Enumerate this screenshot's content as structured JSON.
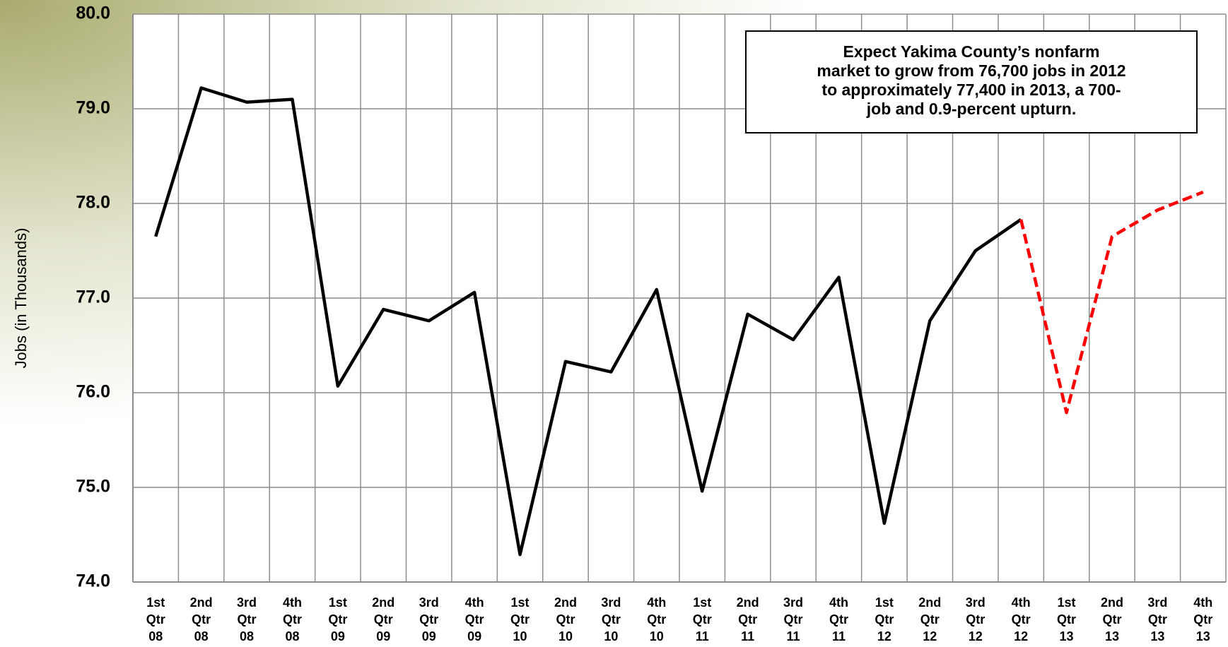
{
  "chart_data": {
    "type": "line",
    "y_label": "Jobs (in Thousands)",
    "annotation": [
      "Expect Yakima County’s nonfarm",
      "market to  grow from 76,700 jobs in 2012",
      "to approximately 77,400 in 2013, a 700-",
      "job  and 0.9-percent upturn."
    ],
    "categories": [
      [
        "1st",
        "Qtr",
        "08"
      ],
      [
        "2nd",
        "Qtr",
        "08"
      ],
      [
        "3rd",
        "Qtr",
        "08"
      ],
      [
        "4th",
        "Qtr",
        "08"
      ],
      [
        "1st",
        "Qtr",
        "09"
      ],
      [
        "2nd",
        "Qtr",
        "09"
      ],
      [
        "3rd",
        "Qtr",
        "09"
      ],
      [
        "4th",
        "Qtr",
        "09"
      ],
      [
        "1st",
        "Qtr",
        "10"
      ],
      [
        "2nd",
        "Qtr",
        "10"
      ],
      [
        "3rd",
        "Qtr",
        "10"
      ],
      [
        "4th",
        "Qtr",
        "10"
      ],
      [
        "1st",
        "Qtr",
        "11"
      ],
      [
        "2nd",
        "Qtr",
        "11"
      ],
      [
        "3rd",
        "Qtr",
        "11"
      ],
      [
        "4th",
        "Qtr",
        "11"
      ],
      [
        "1st",
        "Qtr",
        "12"
      ],
      [
        "2nd",
        "Qtr",
        "12"
      ],
      [
        "3rd",
        "Qtr",
        "12"
      ],
      [
        "4th",
        "Qtr",
        "12"
      ],
      [
        "1st",
        "Qtr",
        "13"
      ],
      [
        "2nd",
        "Qtr",
        "13"
      ],
      [
        "3rd",
        "Qtr",
        "13"
      ],
      [
        "4th",
        "Qtr",
        "13"
      ]
    ],
    "series": [
      {
        "color": "#000000",
        "dash": false,
        "values": [
          77.65,
          79.22,
          79.07,
          79.1,
          76.07,
          76.88,
          76.76,
          77.06,
          74.29,
          76.33,
          76.22,
          77.09,
          74.96,
          76.83,
          76.56,
          77.22,
          74.62,
          76.76,
          77.5,
          77.83,
          null,
          null,
          null,
          null
        ]
      },
      {
        "color": "#ff0000",
        "dash": true,
        "values": [
          null,
          null,
          null,
          null,
          null,
          null,
          null,
          null,
          null,
          null,
          null,
          null,
          null,
          null,
          null,
          null,
          null,
          null,
          null,
          77.83,
          75.79,
          77.65,
          77.93,
          78.12
        ]
      }
    ],
    "ylim": [
      74,
      80
    ],
    "yticks": [
      {
        "value": 74,
        "label": "74.0"
      },
      {
        "value": 75,
        "label": "75.0"
      },
      {
        "value": 76,
        "label": "76.0"
      },
      {
        "value": 77,
        "label": "77.0"
      },
      {
        "value": 78,
        "label": "78.0"
      },
      {
        "value": 79,
        "label": "79.0"
      },
      {
        "value": 80,
        "label": "80.0"
      }
    ],
    "grid": true
  }
}
